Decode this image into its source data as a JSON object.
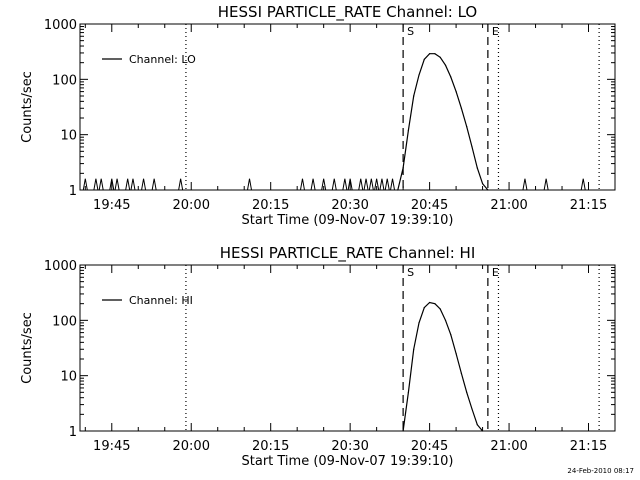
{
  "chart_data": [
    {
      "type": "line",
      "title": "HESSI PARTICLE_RATE Channel: LO",
      "xlabel": "Start Time (09-Nov-07 19:39:10)",
      "ylabel": "Counts/sec",
      "y_scale": "log",
      "ylim": [
        1,
        1000
      ],
      "xlim": [
        "19:39",
        "21:20"
      ],
      "x_ticks": [
        "19:45",
        "20:00",
        "20:15",
        "20:30",
        "20:45",
        "21:00",
        "21:15"
      ],
      "y_ticks": [
        "1",
        "10",
        "100",
        "1000"
      ],
      "legend": {
        "position": "top-left",
        "entries": [
          "Channel: LO"
        ]
      },
      "markers": [
        {
          "label": "S",
          "time": "20:40",
          "style": "dashed"
        },
        {
          "label": "E",
          "time": "20:56",
          "style": "dashed"
        },
        {
          "label": "",
          "time": "19:59",
          "style": "dotted"
        },
        {
          "label": "",
          "time": "20:58",
          "style": "dotted"
        },
        {
          "label": "",
          "time": "21:17",
          "style": "dotted"
        }
      ],
      "series": [
        {
          "name": "Channel: LO",
          "spike_times": [
            "19:40",
            "19:42",
            "19:43",
            "19:45",
            "19:46",
            "19:48",
            "19:49",
            "19:51",
            "19:53",
            "19:58",
            "20:11",
            "20:21",
            "20:23",
            "20:25",
            "20:27",
            "20:29",
            "20:30",
            "20:32",
            "20:33",
            "20:34",
            "20:35",
            "20:36",
            "20:37",
            "20:38",
            "21:03",
            "21:07",
            "21:14"
          ],
          "spike_peak": 1.6,
          "peak_points": [
            [
              "20:39",
              1
            ],
            [
              "20:40",
              2.5
            ],
            [
              "20:41",
              12
            ],
            [
              "20:42",
              50
            ],
            [
              "20:43",
              120
            ],
            [
              "20:44",
              230
            ],
            [
              "20:45",
              290
            ],
            [
              "20:46",
              290
            ],
            [
              "20:47",
              250
            ],
            [
              "20:48",
              180
            ],
            [
              "20:49",
              110
            ],
            [
              "20:50",
              60
            ],
            [
              "20:51",
              30
            ],
            [
              "20:52",
              14
            ],
            [
              "20:53",
              6
            ],
            [
              "20:54",
              2.5
            ],
            [
              "20:55",
              1.3
            ],
            [
              "20:56",
              1
            ]
          ]
        }
      ]
    },
    {
      "type": "line",
      "title": "HESSI PARTICLE_RATE Channel: HI",
      "xlabel": "Start Time (09-Nov-07 19:39:10)",
      "ylabel": "Counts/sec",
      "y_scale": "log",
      "ylim": [
        1,
        1000
      ],
      "xlim": [
        "19:39",
        "21:20"
      ],
      "x_ticks": [
        "19:45",
        "20:00",
        "20:15",
        "20:30",
        "20:45",
        "21:00",
        "21:15"
      ],
      "y_ticks": [
        "1",
        "10",
        "100",
        "1000"
      ],
      "legend": {
        "position": "top-left",
        "entries": [
          "Channel: HI"
        ]
      },
      "markers": [
        {
          "label": "S",
          "time": "20:40",
          "style": "dashed"
        },
        {
          "label": "E",
          "time": "20:56",
          "style": "dashed"
        },
        {
          "label": "",
          "time": "19:59",
          "style": "dotted"
        },
        {
          "label": "",
          "time": "20:58",
          "style": "dotted"
        },
        {
          "label": "",
          "time": "21:17",
          "style": "dotted"
        }
      ],
      "series": [
        {
          "name": "Channel: HI",
          "spike_times": [],
          "spike_peak": 1,
          "peak_points": [
            [
              "20:40",
              1
            ],
            [
              "20:41",
              5
            ],
            [
              "20:42",
              30
            ],
            [
              "20:43",
              90
            ],
            [
              "20:44",
              170
            ],
            [
              "20:45",
              210
            ],
            [
              "20:46",
              200
            ],
            [
              "20:47",
              160
            ],
            [
              "20:48",
              100
            ],
            [
              "20:49",
              55
            ],
            [
              "20:50",
              25
            ],
            [
              "20:51",
              11
            ],
            [
              "20:52",
              5
            ],
            [
              "20:53",
              2.5
            ],
            [
              "20:54",
              1.3
            ],
            [
              "20:55",
              1
            ]
          ]
        }
      ]
    }
  ],
  "footer": {
    "timestamp": "24-Feb-2010 08:17"
  }
}
